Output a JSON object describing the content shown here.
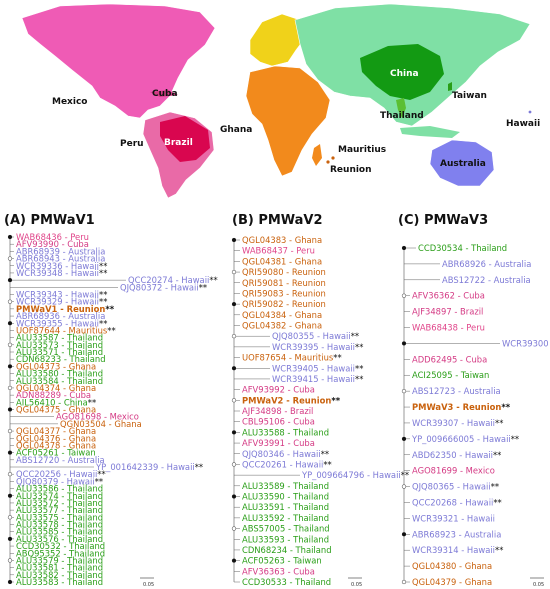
{
  "colors": {
    "Peru": "#e0458a",
    "Cuba": "#d43a84",
    "Australia": "#7d7ad6",
    "Hawaii": "#7d7ad6",
    "Reunion": "#c9620e",
    "Mauritius": "#c9620e",
    "Thailand": "#2a9e18",
    "Ghana": "#c9620e",
    "China": "#2a9e18",
    "Mexico": "#d43a84",
    "Taiwan": "#2a9e18",
    "Brazil": "#d43a84",
    "map_north_america": "#ef5bb5",
    "map_south_america": "#e96aa7",
    "map_brazil": "#d9064f",
    "map_europe": "#f0d21a",
    "map_africa": "#f28a1c",
    "map_asia": "#7fe0a5",
    "map_china": "#139a13",
    "map_thailand": "#5bbf33",
    "map_australia": "#8080ee"
  },
  "map": {
    "labels": [
      "Mexico",
      "Cuba",
      "Peru",
      "Brazil",
      "Ghana",
      "Mauritius",
      "Reunion",
      "China",
      "Taiwan",
      "Thailand",
      "Hawaii",
      "Australia"
    ]
  },
  "panels": [
    {
      "title": "(A) PMWaV1",
      "leaves": [
        {
          "id": "WAB68436",
          "loc": "Peru",
          "mark": ""
        },
        {
          "id": "AFV93990",
          "loc": "Cuba",
          "mark": ""
        },
        {
          "id": "ABR68939",
          "loc": "Australia",
          "mark": ""
        },
        {
          "id": "ABR68943",
          "loc": "Australia",
          "mark": ""
        },
        {
          "id": "WCR39336",
          "loc": "Hawaii",
          "mark": "**"
        },
        {
          "id": "WCR39348",
          "loc": "Hawaii",
          "mark": "**"
        },
        {
          "id": "QCC20274",
          "loc": "Hawaii",
          "mark": "**"
        },
        {
          "id": "QJQ80372",
          "loc": "Hawaii",
          "mark": "**"
        },
        {
          "id": "WCR39343",
          "loc": "Hawaii",
          "mark": "**"
        },
        {
          "id": "WCR39329",
          "loc": "Hawaii",
          "mark": "**"
        },
        {
          "id": "PMWaV1",
          "loc": "Reunion",
          "mark": "**",
          "bold": true
        },
        {
          "id": "ABR68936",
          "loc": "Australia",
          "mark": ""
        },
        {
          "id": "WCR39355",
          "loc": "Hawaii",
          "mark": "**"
        },
        {
          "id": "UOF87644",
          "loc": "Mauritius",
          "mark": "**"
        },
        {
          "id": "ALU33587",
          "loc": "Thailand",
          "mark": ""
        },
        {
          "id": "ALU33573",
          "loc": "Thailand",
          "mark": ""
        },
        {
          "id": "ALU33571",
          "loc": "Thailand",
          "mark": ""
        },
        {
          "id": "CDN68233",
          "loc": "Thailand",
          "mark": ""
        },
        {
          "id": "QGL04373",
          "loc": "Ghana",
          "mark": ""
        },
        {
          "id": "ALU33580",
          "loc": "Thailand",
          "mark": ""
        },
        {
          "id": "ALU33584",
          "loc": "Thailand",
          "mark": ""
        },
        {
          "id": "QGL04374",
          "loc": "Ghana",
          "mark": ""
        },
        {
          "id": "ADN88289",
          "loc": "Cuba",
          "mark": ""
        },
        {
          "id": "AIL56410",
          "loc": "China",
          "mark": "**"
        },
        {
          "id": "QGL04375",
          "loc": "Ghana",
          "mark": ""
        },
        {
          "id": "AGO81698",
          "loc": "Mexico",
          "mark": ""
        },
        {
          "id": "QGN03504",
          "loc": "Ghana",
          "mark": ""
        },
        {
          "id": "QGL04377",
          "loc": "Ghana",
          "mark": ""
        },
        {
          "id": "QGL04376",
          "loc": "Ghana",
          "mark": ""
        },
        {
          "id": "QGL04378",
          "loc": "Ghana",
          "mark": ""
        },
        {
          "id": "ACF05261",
          "loc": "Taiwan",
          "mark": ""
        },
        {
          "id": "ABS12720",
          "loc": "Australia",
          "mark": ""
        },
        {
          "id": "YP_001642339",
          "loc": "Hawaii",
          "mark": "**"
        },
        {
          "id": "QCC20256",
          "loc": "Hawaii",
          "mark": "**"
        },
        {
          "id": "QJQ80379",
          "loc": "Hawaii",
          "mark": "**"
        },
        {
          "id": "ALU33586",
          "loc": "Thailand",
          "mark": ""
        },
        {
          "id": "ALU33574",
          "loc": "Thailand",
          "mark": ""
        },
        {
          "id": "ALU33572",
          "loc": "Thailand",
          "mark": ""
        },
        {
          "id": "ALU33577",
          "loc": "Thailand",
          "mark": ""
        },
        {
          "id": "ALU33575",
          "loc": "Thailand",
          "mark": ""
        },
        {
          "id": "ALU33578",
          "loc": "Thailand",
          "mark": ""
        },
        {
          "id": "ALU33585",
          "loc": "Thailand",
          "mark": ""
        },
        {
          "id": "ALU33576",
          "loc": "Thailand",
          "mark": ""
        },
        {
          "id": "CCD30532",
          "loc": "Thailand",
          "mark": ""
        },
        {
          "id": "ABQ95352",
          "loc": "Thailand",
          "mark": ""
        },
        {
          "id": "ALU33579",
          "loc": "Thailand",
          "mark": ""
        },
        {
          "id": "ALU33581",
          "loc": "Thailand",
          "mark": ""
        },
        {
          "id": "ALU33582",
          "loc": "Thailand",
          "mark": ""
        },
        {
          "id": "ALU33583",
          "loc": "Thailand",
          "mark": ""
        }
      ],
      "scale": "0.05"
    },
    {
      "title": "(B) PMWaV2",
      "leaves": [
        {
          "id": "QGL04383",
          "loc": "Ghana",
          "mark": ""
        },
        {
          "id": "WAB68437",
          "loc": "Peru",
          "mark": ""
        },
        {
          "id": "QGL04381",
          "loc": "Ghana",
          "mark": ""
        },
        {
          "id": "QRI59080",
          "loc": "Reunion",
          "mark": ""
        },
        {
          "id": "QRI59081",
          "loc": "Reunion",
          "mark": ""
        },
        {
          "id": "QRI59083",
          "loc": "Reunion",
          "mark": ""
        },
        {
          "id": "QRI59082",
          "loc": "Reunion",
          "mark": ""
        },
        {
          "id": "QGL04384",
          "loc": "Ghana",
          "mark": ""
        },
        {
          "id": "QGL04382",
          "loc": "Ghana",
          "mark": ""
        },
        {
          "id": "QJQ80355",
          "loc": "Hawaii",
          "mark": "**"
        },
        {
          "id": "WCR39395",
          "loc": "Hawaii",
          "mark": "**"
        },
        {
          "id": "UOF87654",
          "loc": "Mauritius",
          "mark": "**"
        },
        {
          "id": "WCR39405",
          "loc": "Hawaii",
          "mark": "**"
        },
        {
          "id": "WCR39415",
          "loc": "Hawaii",
          "mark": "**"
        },
        {
          "id": "AFV93992",
          "loc": "Cuba",
          "mark": ""
        },
        {
          "id": "PMWaV2",
          "loc": "Reunion",
          "mark": "**",
          "bold": true
        },
        {
          "id": "AJF34898",
          "loc": "Brazil",
          "mark": ""
        },
        {
          "id": "CBL95106",
          "loc": "Cuba",
          "mark": ""
        },
        {
          "id": "ALU33588",
          "loc": "Thailand",
          "mark": ""
        },
        {
          "id": "AFV93991",
          "loc": "Cuba",
          "mark": ""
        },
        {
          "id": "QJQ80346",
          "loc": "Hawaii",
          "mark": "**"
        },
        {
          "id": "QCC20261",
          "loc": "Hawaii",
          "mark": "**"
        },
        {
          "id": "YP_009664796",
          "loc": "Hawaii",
          "mark": "**"
        },
        {
          "id": "ALU33589",
          "loc": "Thailand",
          "mark": ""
        },
        {
          "id": "ALU33590",
          "loc": "Thailand",
          "mark": ""
        },
        {
          "id": "ALU33591",
          "loc": "Thailand",
          "mark": ""
        },
        {
          "id": "ALU33592",
          "loc": "Thailand",
          "mark": ""
        },
        {
          "id": "ABS57005",
          "loc": "Thailand",
          "mark": ""
        },
        {
          "id": "ALU33593",
          "loc": "Thailand",
          "mark": ""
        },
        {
          "id": "CDN68234",
          "loc": "Thailand",
          "mark": ""
        },
        {
          "id": "ACF05263",
          "loc": "Taiwan",
          "mark": ""
        },
        {
          "id": "AFV36363",
          "loc": "Cuba",
          "mark": ""
        },
        {
          "id": "CCD30533",
          "loc": "Thailand",
          "mark": ""
        }
      ],
      "scale": "0.05"
    },
    {
      "title": "(C) PMWaV3",
      "leaves": [
        {
          "id": "CCD30534",
          "loc": "Thailand",
          "mark": ""
        },
        {
          "id": "ABR68926",
          "loc": "Australia",
          "mark": ""
        },
        {
          "id": "ABS12722",
          "loc": "Australia",
          "mark": ""
        },
        {
          "id": "AFV36362",
          "loc": "Cuba",
          "mark": ""
        },
        {
          "id": "AJF34897",
          "loc": "Brazil",
          "mark": ""
        },
        {
          "id": "WAB68438",
          "loc": "Peru",
          "mark": ""
        },
        {
          "id": "WCR39300",
          "loc": "Hawaii",
          "mark": ""
        },
        {
          "id": "ADD62495",
          "loc": "Cuba",
          "mark": ""
        },
        {
          "id": "ACI25095",
          "loc": "Taiwan",
          "mark": ""
        },
        {
          "id": "ABS12723",
          "loc": "Australia",
          "mark": ""
        },
        {
          "id": "PMWaV3",
          "loc": "Reunion",
          "mark": "**",
          "bold": true
        },
        {
          "id": "WCR39307",
          "loc": "Hawaii",
          "mark": "**"
        },
        {
          "id": "YP_009666005",
          "loc": "Hawaii",
          "mark": "**"
        },
        {
          "id": "ABD62350",
          "loc": "Hawaii",
          "mark": "**"
        },
        {
          "id": "AGO81699",
          "loc": "Mexico",
          "mark": ""
        },
        {
          "id": "QJQ80365",
          "loc": "Hawaii",
          "mark": "**"
        },
        {
          "id": "QCC20268",
          "loc": "Hawaii",
          "mark": "**"
        },
        {
          "id": "WCR39321",
          "loc": "Hawaii",
          "mark": ""
        },
        {
          "id": "ABR68923",
          "loc": "Australia",
          "mark": ""
        },
        {
          "id": "WCR39314",
          "loc": "Hawaii",
          "mark": "**"
        },
        {
          "id": "QGL04380",
          "loc": "Ghana",
          "mark": ""
        },
        {
          "id": "QGL04379",
          "loc": "Ghana",
          "mark": ""
        }
      ],
      "scale": "0.05"
    }
  ]
}
